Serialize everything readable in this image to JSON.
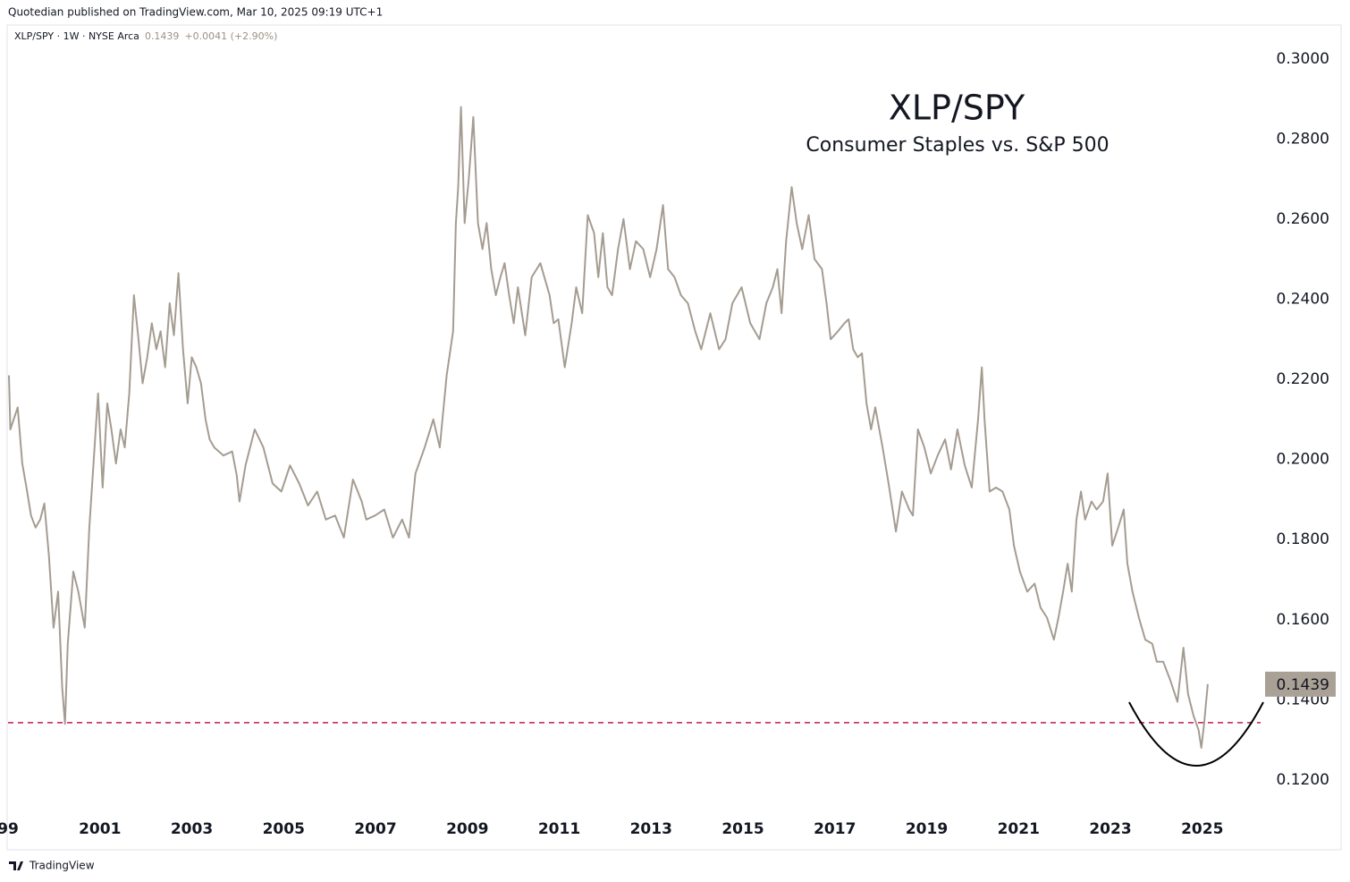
{
  "header": {
    "published": "Quotedian published on TradingView.com, Mar 10, 2025 09:19 UTC+1",
    "symbol": "XLP/SPY · 1W · NYSE Arca",
    "last": "0.1439",
    "change": "+0.0041 (+2.90%)"
  },
  "footer": {
    "brand": "TradingView"
  },
  "chart_data": {
    "type": "line",
    "title": "XLP/SPY",
    "subtitle": "Consumer Staples vs. S&P 500",
    "x": [
      1999.02,
      1999.05,
      1999.21,
      1999.31,
      1999.4,
      1999.5,
      1999.6,
      1999.7,
      1999.79,
      1999.89,
      1999.99,
      2000.09,
      2000.18,
      2000.24,
      2000.3,
      2000.42,
      2000.53,
      2000.67,
      2000.77,
      2000.86,
      2000.96,
      2001.06,
      2001.16,
      2001.25,
      2001.35,
      2001.45,
      2001.54,
      2001.64,
      2001.74,
      2001.84,
      2001.93,
      2002.03,
      2002.13,
      2002.23,
      2002.32,
      2002.42,
      2002.52,
      2002.61,
      2002.71,
      2002.81,
      2002.91,
      2003.0,
      2003.1,
      2003.2,
      2003.3,
      2003.39,
      2003.49,
      2003.69,
      2003.88,
      2003.98,
      2004.04,
      2004.17,
      2004.37,
      2004.56,
      2004.76,
      2004.95,
      2005.14,
      2005.34,
      2005.53,
      2005.73,
      2005.92,
      2006.12,
      2006.31,
      2006.51,
      2006.7,
      2006.8,
      2006.99,
      2007.19,
      2007.38,
      2007.58,
      2007.73,
      2007.87,
      2008.07,
      2008.26,
      2008.4,
      2008.55,
      2008.69,
      2008.75,
      2008.8,
      2008.86,
      2008.94,
      2009.03,
      2009.13,
      2009.23,
      2009.33,
      2009.42,
      2009.52,
      2009.62,
      2009.72,
      2009.81,
      2009.91,
      2010.01,
      2010.1,
      2010.26,
      2010.4,
      2010.59,
      2010.79,
      2010.88,
      2010.98,
      2011.12,
      2011.27,
      2011.37,
      2011.5,
      2011.62,
      2011.76,
      2011.85,
      2011.95,
      2012.05,
      2012.15,
      2012.28,
      2012.4,
      2012.54,
      2012.67,
      2012.83,
      2012.98,
      2013.12,
      2013.26,
      2013.37,
      2013.51,
      2013.65,
      2013.8,
      2013.96,
      2014.09,
      2014.29,
      2014.48,
      2014.62,
      2014.77,
      2014.97,
      2015.16,
      2015.36,
      2015.51,
      2015.65,
      2015.75,
      2015.84,
      2015.94,
      2016.06,
      2016.17,
      2016.29,
      2016.43,
      2016.56,
      2016.72,
      2016.82,
      2016.91,
      2017.07,
      2017.21,
      2017.3,
      2017.4,
      2017.5,
      2017.59,
      2017.69,
      2017.79,
      2017.88,
      2018.04,
      2018.17,
      2018.33,
      2018.46,
      2018.62,
      2018.7,
      2018.81,
      2018.95,
      2019.09,
      2019.24,
      2019.4,
      2019.53,
      2019.67,
      2019.83,
      2019.98,
      2020.12,
      2020.2,
      2020.26,
      2020.37,
      2020.51,
      2020.65,
      2020.8,
      2020.9,
      2021.03,
      2021.19,
      2021.35,
      2021.48,
      2021.62,
      2021.77,
      2021.87,
      2021.97,
      2022.07,
      2022.16,
      2022.26,
      2022.36,
      2022.45,
      2022.59,
      2022.7,
      2022.84,
      2022.94,
      2023.04,
      2023.17,
      2023.29,
      2023.37,
      2023.48,
      2023.62,
      2023.76,
      2023.91,
      2024.01,
      2024.15,
      2024.3,
      2024.46,
      2024.59,
      2024.69,
      2024.81,
      2024.92,
      2024.98,
      2025.04,
      2025.12
    ],
    "series": [
      {
        "color": "#a59c91",
        "values": [
          0.221,
          0.2075,
          0.213,
          0.199,
          0.193,
          0.186,
          0.183,
          0.185,
          0.189,
          0.176,
          0.158,
          0.167,
          0.143,
          0.134,
          0.154,
          0.172,
          0.167,
          0.158,
          0.183,
          0.199,
          0.2165,
          0.193,
          0.214,
          0.2075,
          0.199,
          0.2075,
          0.203,
          0.2165,
          0.241,
          0.23,
          0.219,
          0.2255,
          0.234,
          0.2275,
          0.232,
          0.223,
          0.239,
          0.231,
          0.2465,
          0.2275,
          0.214,
          0.2255,
          0.223,
          0.219,
          0.21,
          0.205,
          0.203,
          0.201,
          0.202,
          0.196,
          0.1895,
          0.1985,
          0.2075,
          0.203,
          0.194,
          0.192,
          0.1985,
          0.194,
          0.1885,
          0.192,
          0.185,
          0.186,
          0.1805,
          0.195,
          0.1895,
          0.185,
          0.186,
          0.1875,
          0.1805,
          0.185,
          0.1805,
          0.1965,
          0.203,
          0.21,
          0.203,
          0.221,
          0.232,
          0.259,
          0.268,
          0.288,
          0.259,
          0.27,
          0.2855,
          0.259,
          0.2525,
          0.259,
          0.2475,
          0.241,
          0.2455,
          0.249,
          0.241,
          0.234,
          0.243,
          0.231,
          0.2455,
          0.249,
          0.241,
          0.234,
          0.235,
          0.223,
          0.234,
          0.243,
          0.2365,
          0.261,
          0.2565,
          0.2455,
          0.2565,
          0.243,
          0.241,
          0.2525,
          0.26,
          0.2475,
          0.2545,
          0.2525,
          0.2455,
          0.2525,
          0.2635,
          0.2475,
          0.2455,
          0.241,
          0.239,
          0.232,
          0.2275,
          0.2365,
          0.2275,
          0.23,
          0.239,
          0.243,
          0.234,
          0.23,
          0.239,
          0.243,
          0.2475,
          0.2365,
          0.2545,
          0.268,
          0.259,
          0.2525,
          0.261,
          0.25,
          0.2475,
          0.239,
          0.23,
          0.232,
          0.234,
          0.235,
          0.2275,
          0.2255,
          0.2265,
          0.214,
          0.2075,
          0.213,
          0.203,
          0.194,
          0.182,
          0.192,
          0.1875,
          0.186,
          0.2075,
          0.203,
          0.1965,
          0.201,
          0.205,
          0.1975,
          0.2075,
          0.1985,
          0.193,
          0.21,
          0.223,
          0.21,
          0.192,
          0.193,
          0.192,
          0.1875,
          0.1785,
          0.172,
          0.167,
          0.169,
          0.163,
          0.1605,
          0.155,
          0.1605,
          0.167,
          0.174,
          0.167,
          0.185,
          0.192,
          0.185,
          0.1895,
          0.1875,
          0.1895,
          0.1965,
          0.1785,
          0.183,
          0.1875,
          0.174,
          0.167,
          0.1605,
          0.155,
          0.154,
          0.1495,
          0.1495,
          0.145,
          0.1395,
          0.153,
          0.1415,
          0.136,
          0.1325,
          0.128,
          0.134,
          0.1439
        ]
      }
    ],
    "hline": {
      "value": 0.1343,
      "color": "#c2185b"
    },
    "last_label_color": "#aaa196",
    "xlim": [
      1999,
      2026.27
    ],
    "ylim": [
      0.103,
      0.308
    ],
    "xticks": [
      {
        "value": 1999,
        "label": "99"
      },
      2001,
      2003,
      2005,
      2007,
      2009,
      2011,
      2013,
      2015,
      2017,
      2019,
      2021,
      2023,
      2025
    ],
    "yticks": [
      {
        "value": 0.12,
        "label": "0.1200"
      },
      {
        "value": 0.14,
        "label": "0.1400"
      },
      {
        "value": 0.16,
        "label": "0.1600"
      },
      {
        "value": 0.18,
        "label": "0.1800"
      },
      {
        "value": 0.2,
        "label": "0.2000"
      },
      {
        "value": 0.22,
        "label": "0.2200"
      },
      {
        "value": 0.24,
        "label": "0.2400"
      },
      {
        "value": 0.26,
        "label": "0.2600"
      },
      {
        "value": 0.28,
        "label": "0.2800"
      },
      {
        "value": 0.3,
        "label": "0.3000"
      }
    ]
  }
}
